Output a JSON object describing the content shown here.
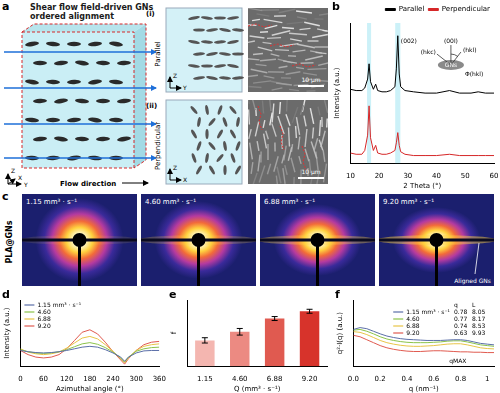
{
  "figure": {
    "a": {
      "label": "a",
      "title": "Shear flow field-driven GNs ordered alignment",
      "flow": "Flow direction",
      "axes": [
        "X",
        "Y",
        "Z"
      ],
      "views": [
        {
          "index": "(i)",
          "name": "Parallel",
          "axes": [
            "Y",
            "Z"
          ],
          "scale": "10 μm"
        },
        {
          "index": "(ii)",
          "name": "Perpendicular",
          "axes": [
            "X",
            "Z"
          ],
          "scale": "10 μm"
        }
      ]
    },
    "c": {
      "label": "c",
      "sample": "PLA@GNs",
      "patterns": [
        "1.15 mm³ · s⁻¹",
        "4.60 mm³ · s⁻¹",
        "6.88 mm³ · s⁻¹",
        "9.20 mm³ · s⁻¹"
      ],
      "annotation": "Aligned GNs"
    }
  },
  "chart_data": [
    {
      "panel": "b",
      "type": "line",
      "xlabel": "2 Theta (°)",
      "ylabel": "Intensity (a.u.)",
      "x": [
        10,
        12,
        14,
        15,
        16,
        16.5,
        17,
        18,
        18.8,
        19.5,
        21,
        22.5,
        24,
        25.5,
        26,
        26.5,
        27,
        27.5,
        29,
        32,
        36,
        40,
        44.5,
        48,
        52,
        54.5,
        57,
        60
      ],
      "series": [
        {
          "name": "Parallel",
          "color": "#000000",
          "values": [
            58,
            57,
            57,
            59,
            66,
            78,
            64,
            58,
            62,
            57,
            56,
            56,
            57,
            60,
            74,
            100,
            70,
            60,
            57,
            56,
            55,
            55,
            57,
            55,
            55,
            56,
            55,
            55
          ]
        },
        {
          "name": "Perpendicular",
          "color": "#d62728",
          "values": [
            8,
            7,
            7,
            10,
            22,
            45,
            20,
            10,
            14,
            8,
            7,
            7,
            8,
            10,
            16,
            24,
            14,
            9,
            7,
            6,
            6,
            6,
            7,
            6,
            6,
            6,
            6,
            6
          ]
        }
      ],
      "xlim": [
        10,
        60
      ],
      "xticks": [
        10,
        20,
        30,
        40,
        50,
        60
      ],
      "ylim": [
        0,
        110
      ],
      "tick_labels": "x",
      "legend": "top",
      "annotations": [
        "(002)"
      ],
      "bands": [
        [
          15.8,
          17.2
        ],
        [
          25.6,
          27.4
        ]
      ],
      "inset": {
        "labels": [
          "(hkc)",
          "(hkl)",
          "GNs",
          "Φ(hkl)",
          "(00l)"
        ]
      }
    },
    {
      "panel": "d",
      "type": "line",
      "xlabel": "Azimuthal angle (°)",
      "ylabel": "Intensity (a.u.)",
      "x": [
        0,
        20,
        40,
        60,
        80,
        100,
        120,
        140,
        160,
        180,
        200,
        220,
        240,
        260,
        270,
        280,
        300,
        320,
        340,
        360
      ],
      "series": [
        {
          "name": "1.15 mm³ · s⁻¹",
          "color": "#5b6fa8",
          "values": [
            38,
            35,
            33,
            32,
            33,
            35,
            38,
            42,
            46,
            48,
            46,
            40,
            32,
            22,
            12,
            22,
            32,
            37,
            38,
            38
          ]
        },
        {
          "name": "4.60",
          "color": "#8bc34a",
          "values": [
            40,
            35,
            32,
            31,
            32,
            35,
            40,
            47,
            54,
            57,
            53,
            45,
            34,
            20,
            10,
            22,
            36,
            42,
            45,
            46
          ]
        },
        {
          "name": "6.88",
          "color": "#e8c547",
          "values": [
            42,
            34,
            30,
            28,
            30,
            34,
            44,
            56,
            68,
            72,
            66,
            52,
            36,
            18,
            8,
            20,
            38,
            48,
            52,
            54
          ]
        },
        {
          "name": "9.20",
          "color": "#e05a4f",
          "values": [
            38,
            28,
            22,
            20,
            22,
            28,
            42,
            62,
            82,
            88,
            78,
            58,
            35,
            15,
            5,
            18,
            38,
            52,
            58,
            60
          ]
        }
      ],
      "xlim": [
        0,
        360
      ],
      "xticks": [
        0,
        60,
        120,
        180,
        240,
        300,
        360
      ],
      "ylim": [
        0,
        160
      ],
      "tick_labels": "x",
      "legend": "upper left"
    },
    {
      "panel": "e",
      "type": "bar",
      "xlabel": "Q (mm³ · s⁻¹)",
      "ylabel": "f",
      "categories": [
        "1.15",
        "4.60",
        "6.88",
        "9.20"
      ],
      "values": [
        0.39,
        0.52,
        0.72,
        0.83
      ],
      "errors": [
        0.04,
        0.05,
        0.03,
        0.03
      ],
      "colors": [
        "#f4b6b0",
        "#ec8a82",
        "#e05a50",
        "#d7332b"
      ],
      "ylim": [
        0,
        1
      ],
      "tick_labels": "x"
    },
    {
      "panel": "f",
      "type": "line",
      "xlabel": "q (nm⁻¹)",
      "ylabel": "q²·I(q) (a.u.)",
      "x": [
        0,
        0.05,
        0.1,
        0.15,
        0.2,
        0.25,
        0.3,
        0.35,
        0.4,
        0.45,
        0.5,
        0.55,
        0.6,
        0.65,
        0.7,
        0.75,
        0.8,
        0.85,
        0.9,
        0.95,
        1,
        1.05
      ],
      "series": [
        {
          "name": "1.15 mm³ · s⁻¹",
          "color": "#5b6fa8",
          "q": 0.78,
          "L": 8.05,
          "values": [
            80,
            85,
            82,
            75,
            68,
            62,
            58,
            55,
            53,
            52,
            51,
            50,
            50,
            50,
            51,
            52,
            52,
            50,
            46,
            42,
            40,
            38
          ]
        },
        {
          "name": "4.60",
          "color": "#8bc34a",
          "q": 0.77,
          "L": 8.17,
          "values": [
            78,
            80,
            75,
            68,
            60,
            54,
            50,
            47,
            45,
            44,
            44,
            44,
            45,
            46,
            48,
            49,
            49,
            46,
            42,
            38,
            36,
            34
          ]
        },
        {
          "name": "6.88",
          "color": "#e8c547",
          "q": 0.74,
          "L": 8.53,
          "values": [
            74,
            72,
            66,
            58,
            50,
            44,
            40,
            37,
            35,
            34,
            34,
            35,
            36,
            38,
            40,
            41,
            41,
            38,
            34,
            30,
            28,
            27
          ]
        },
        {
          "name": "9.20",
          "color": "#e05a4f",
          "q": 0.63,
          "L": 9.93,
          "values": [
            64,
            60,
            52,
            44,
            36,
            30,
            26,
            23,
            21,
            20,
            20,
            21,
            22,
            22,
            21,
            20,
            19,
            19,
            18,
            18,
            17,
            17
          ]
        }
      ],
      "xlim": [
        0,
        1.05
      ],
      "xticks": [
        {
          "value": 0,
          "label": "0.0"
        },
        0.2,
        0.4,
        0.6,
        0.8,
        1
      ],
      "ylim": [
        -20,
        160
      ],
      "tick_labels": "x",
      "legend": "upper right",
      "legend_headers": [
        "q",
        "L"
      ],
      "annotations": [
        "qMAX"
      ]
    }
  ]
}
